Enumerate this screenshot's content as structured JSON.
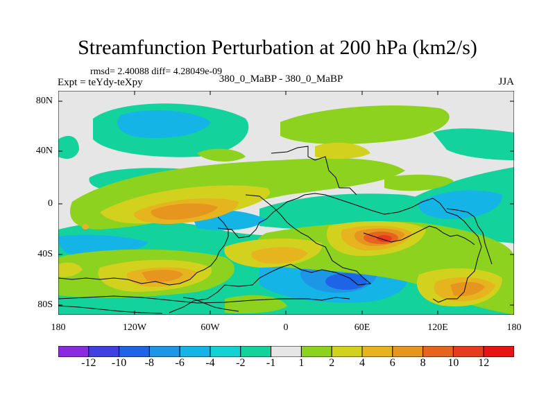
{
  "title": "Streamfunction Perturbation at 200 hPa (km2/s)",
  "stats": "rmsd= 2.40088 diff= 4.28049e-09",
  "experiment": "Expt = teYdy-teXpy",
  "comparison": "380_0_MaBP - 380_0_MaBP",
  "season": "JJA",
  "map": {
    "projection": "cylindrical-equidistant",
    "lat_range": [
      -90,
      90
    ],
    "lon_range": [
      -180,
      180
    ],
    "lat_ticks": [
      "80N",
      "40N",
      "0",
      "40S",
      "80S"
    ],
    "lon_ticks": [
      "180",
      "120W",
      "60W",
      "0",
      "60E",
      "120E",
      "180"
    ]
  },
  "colorbar": {
    "colors": [
      "#8a2be2",
      "#4040e0",
      "#1e64e6",
      "#1e96e6",
      "#14b4e6",
      "#14d2d2",
      "#14d29b",
      "#e6e6e6",
      "#8cd21e",
      "#d2d21e",
      "#e6b41e",
      "#e6961e",
      "#e6641e",
      "#e63c1e",
      "#e61414"
    ],
    "labels": [
      "-12",
      "-10",
      "-8",
      "-6",
      "-4",
      "-2",
      "-1",
      "1",
      "2",
      "4",
      "6",
      "8",
      "10",
      "12"
    ]
  },
  "chart_data": {
    "type": "heatmap",
    "title": "Streamfunction Perturbation at 200 hPa (km2/s)",
    "variable": "streamfunction perturbation",
    "units": "km2/s",
    "level": "200 hPa",
    "contour_levels": [
      -12,
      -10,
      -8,
      -6,
      -4,
      -2,
      -1,
      1,
      2,
      4,
      6,
      8,
      10,
      12
    ],
    "features": [
      {
        "label": "positive maximum",
        "lon": 75,
        "lat": -30,
        "value": 10
      },
      {
        "label": "positive maximum",
        "lon": -90,
        "lat": -5,
        "value": 6
      },
      {
        "label": "positive maximum",
        "lon": -70,
        "lat": -52,
        "value": 6
      },
      {
        "label": "positive maximum",
        "lon": 128,
        "lat": -60,
        "value": 6
      },
      {
        "label": "positive maximum",
        "lon": -10,
        "lat": -40,
        "value": 6
      },
      {
        "label": "negative minimum",
        "lon": 55,
        "lat": -58,
        "value": -8
      },
      {
        "label": "negative minimum",
        "lon": -100,
        "lat": 60,
        "value": -4
      },
      {
        "label": "negative minimum",
        "lon": -100,
        "lat": -30,
        "value": -4
      },
      {
        "label": "negative minimum",
        "lon": 145,
        "lat": 5,
        "value": -4
      },
      {
        "label": "positive band",
        "lon": 40,
        "lat": 60,
        "value": 2
      }
    ]
  }
}
